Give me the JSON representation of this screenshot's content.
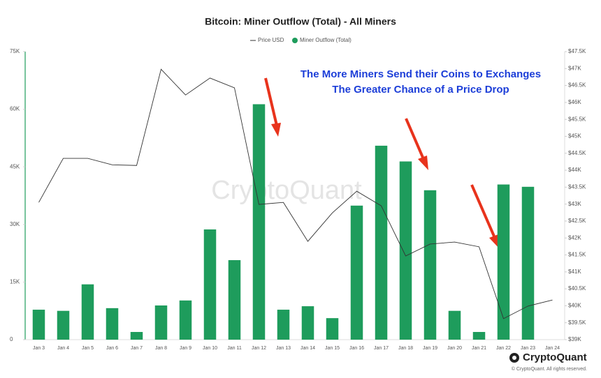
{
  "chart_data": {
    "type": "bar-line",
    "title": "Bitcoin: Miner Outflow (Total) - All Miners",
    "annotation": [
      "The More Miners Send their Coins to Exchanges",
      "The Greater Chance of a Price Drop"
    ],
    "watermark": "CryptoQuant",
    "brand": "CryptoQuant",
    "copyright": "© CryptoQuant. All rights reserved.",
    "categories": [
      "Jan 3",
      "Jan 4",
      "Jan 5",
      "Jan 6",
      "Jan 7",
      "Jan 8",
      "Jan 9",
      "Jan 10",
      "Jan 11",
      "Jan 12",
      "Jan 13",
      "Jan 14",
      "Jan 15",
      "Jan 16",
      "Jan 17",
      "Jan 18",
      "Jan 19",
      "Jan 20",
      "Jan 21",
      "Jan 22",
      "Jan 23",
      "Jan 24"
    ],
    "series": [
      {
        "name": "Price USD",
        "color": "#333333",
        "axis": "y2",
        "values": [
          43050,
          44350,
          44350,
          44160,
          44140,
          46980,
          46220,
          46720,
          46430,
          42990,
          43050,
          41900,
          42740,
          43380,
          42950,
          41470,
          41820,
          41880,
          41740,
          39620,
          39990,
          40170
        ]
      },
      {
        "name": "Miner Outflow (Total)",
        "color": "#1e9c5c",
        "values": [
          7800,
          7500,
          14400,
          8200,
          2000,
          8900,
          10200,
          28700,
          20700,
          61300,
          7800,
          8700,
          5600,
          34900,
          50500,
          46400,
          38900,
          7500,
          2000,
          40400,
          39800,
          null
        ]
      }
    ],
    "ylim": [
      0,
      75000
    ],
    "yticks": [
      0,
      {
        "value": 15000,
        "label": "15K"
      },
      {
        "value": 30000,
        "label": "30K"
      },
      {
        "value": 45000,
        "label": "45K"
      },
      {
        "value": 60000,
        "label": "60K"
      },
      {
        "value": 75000,
        "label": "75K"
      }
    ],
    "y2lim": [
      39000,
      47500
    ],
    "y2ticks": [
      {
        "value": 39000,
        "label": "$39K"
      },
      {
        "value": 39500,
        "label": "$39.5K"
      },
      {
        "value": 40000,
        "label": "$40K"
      },
      {
        "value": 40500,
        "label": "$40.5K"
      },
      {
        "value": 41000,
        "label": "$41K"
      },
      {
        "value": 41500,
        "label": "$41.5K"
      },
      {
        "value": 42000,
        "label": "$42K"
      },
      {
        "value": 42500,
        "label": "$42.5K"
      },
      {
        "value": 43000,
        "label": "$43K"
      },
      {
        "value": 43500,
        "label": "$43.5K"
      },
      {
        "value": 44000,
        "label": "$44K"
      },
      {
        "value": 44500,
        "label": "$44.5K"
      },
      {
        "value": 45000,
        "label": "$45K"
      },
      {
        "value": 45500,
        "label": "$45.5K"
      },
      {
        "value": 46000,
        "label": "$46K"
      },
      {
        "value": 46500,
        "label": "$46.5K"
      },
      {
        "value": 47000,
        "label": "$47K"
      },
      {
        "value": 47500,
        "label": "$47.5K"
      }
    ]
  }
}
